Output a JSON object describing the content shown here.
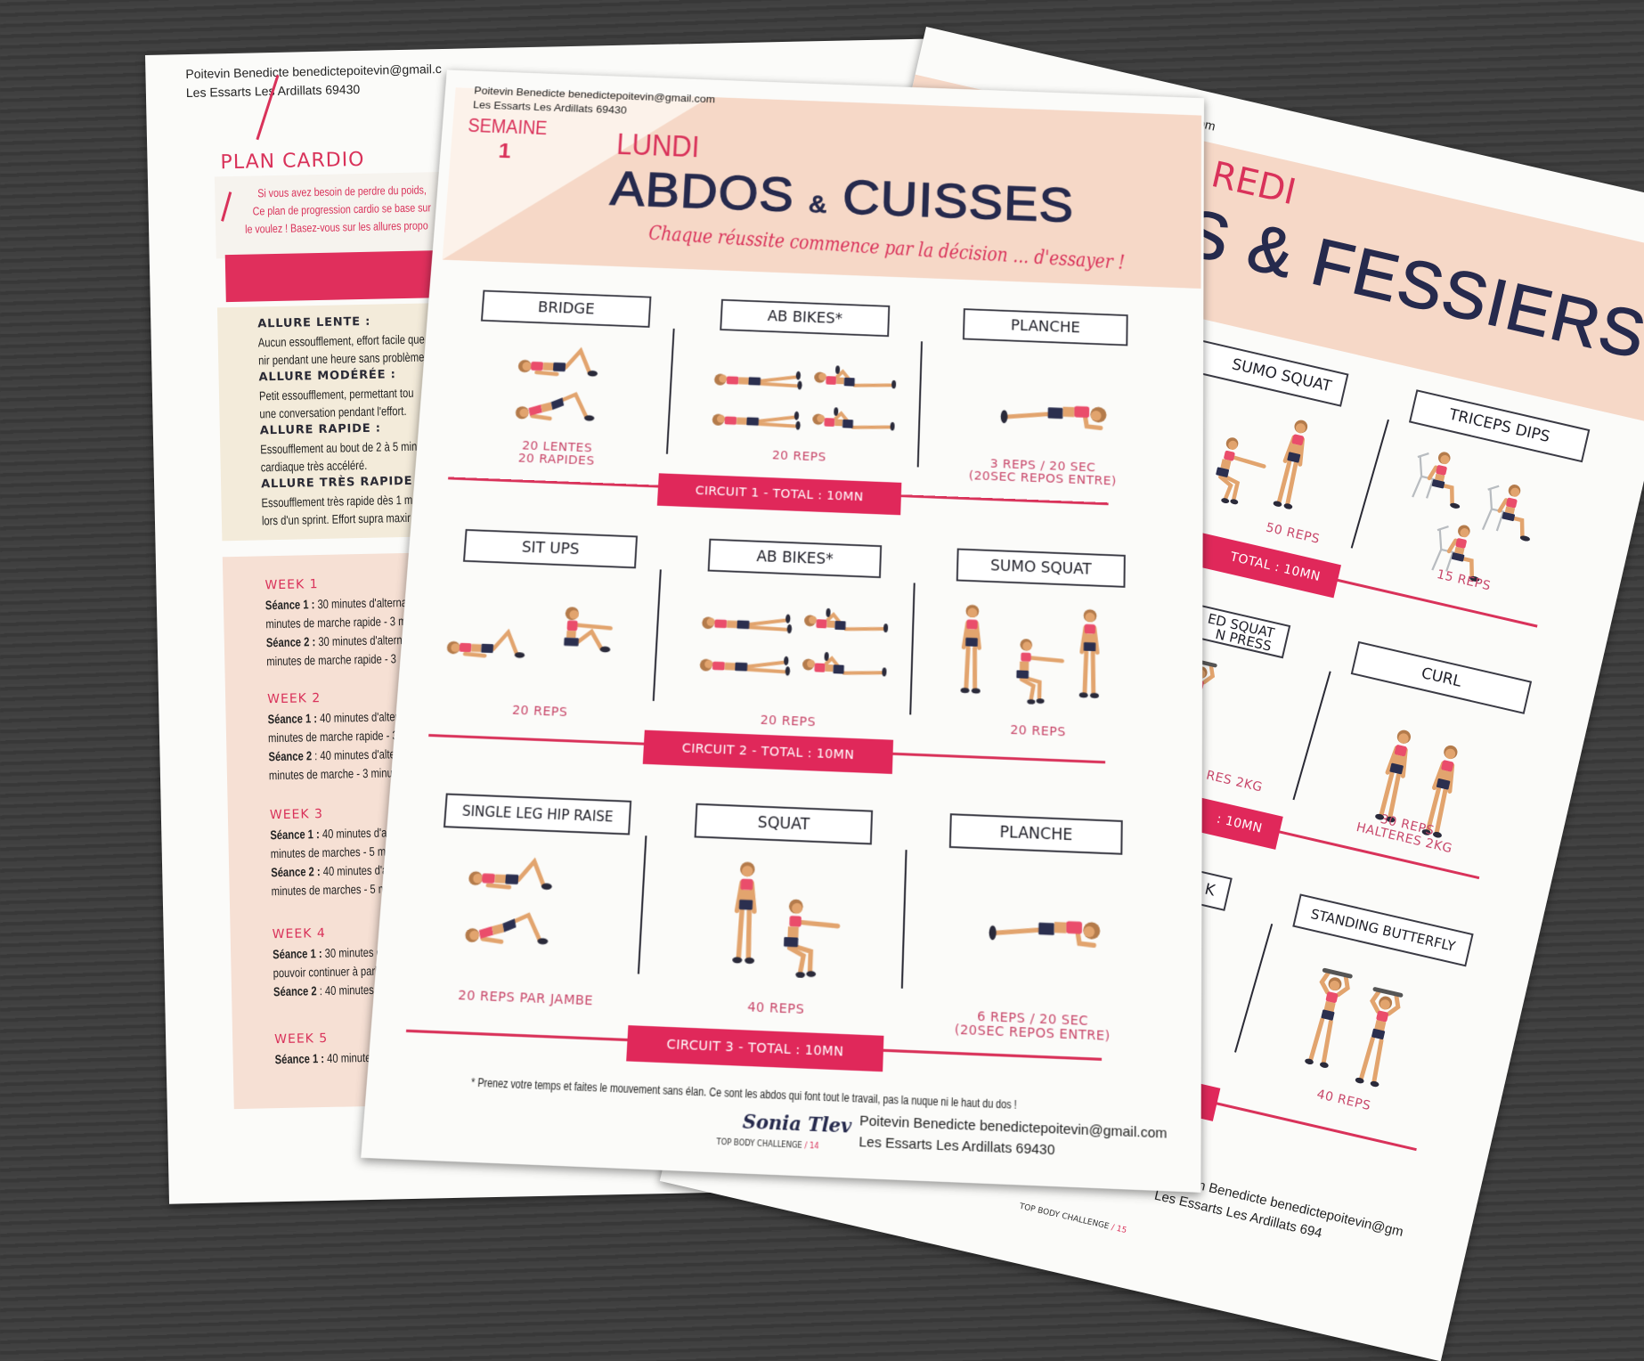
{
  "colors": {
    "accent_red": "#d9325a",
    "circuit_bar": "#e0285a",
    "title_navy": "#262a4d",
    "header_band": "#f6d8c7",
    "reps_text": "#c8476a",
    "table_background": "#3c3c3c"
  },
  "left_page": {
    "contact": {
      "line1": "Poitevin Benedicte benedictepoitevin@gmail.c",
      "line2": "Les Essarts Les Ardillats 69430"
    },
    "title": "PLAN CARDIO",
    "intro": [
      "Si vous avez besoin de perdre du poids, ",
      "Ce plan de progression cardio se base sur",
      "le voulez ! Basez-vous sur les allures propo"
    ],
    "allures": [
      {
        "label": "ALLURE LENTE :",
        "lines": [
          "Aucun essoufflement, effort facile que",
          "nir pendant une heure sans problème."
        ]
      },
      {
        "label": "ALLURE MODÉRÉE :",
        "lines": [
          "Petit essoufflement, permettant tou",
          "une conversation pendant l'effort."
        ]
      },
      {
        "label": "ALLURE RAPIDE :",
        "lines": [
          "Essoufflement au bout de 2 à 5 min",
          "cardiaque très accéléré."
        ]
      },
      {
        "label": "ALLURE TRÈS RAPIDE :",
        "lines": [
          "Essoufflement très rapide dès 1 m",
          "lors d'un sprint. Effort supra maxir"
        ]
      }
    ],
    "weeks": [
      {
        "label": "WEEK 1",
        "lines": [
          {
            "bold": "Séance 1 :",
            "text": " 30 minutes d'alterna"
          },
          {
            "bold": "",
            "text": "minutes de marche rapide - 3 m"
          },
          {
            "bold": "Séance 2 :",
            "text": " 30 minutes d'altern"
          },
          {
            "bold": "",
            "text": "minutes de marche rapide  - 3"
          }
        ]
      },
      {
        "label": "WEEK 2",
        "lines": [
          {
            "bold": "Séance 1 :",
            "text": " 40 minutes d'alter"
          },
          {
            "bold": "",
            "text": "minutes de marche rapide - 3"
          },
          {
            "bold": "Séance 2",
            "text": " : 40 minutes d'alte"
          },
          {
            "bold": "",
            "text": "minutes de marche - 3 minu"
          }
        ]
      },
      {
        "label": "WEEK 3",
        "lines": [
          {
            "bold": "Séance 1 :",
            "text": " 40 minutes d'al"
          },
          {
            "bold": "",
            "text": "minutes de marches - 5 mi"
          },
          {
            "bold": "Séance 2 :",
            "text": " 40 minutes d'a"
          },
          {
            "bold": "",
            "text": "minutes de marches - 5 m"
          }
        ]
      },
      {
        "label": "WEEK 4",
        "lines": [
          {
            "bold": "Séance 1 :",
            "text": " 30 minutes de"
          },
          {
            "bold": "",
            "text": "pouvoir continuer à parl"
          },
          {
            "bold": "Séance 2",
            "text": " : 40 minutes d"
          }
        ]
      },
      {
        "label": "WEEK 5",
        "lines": [
          {
            "bold": "Séance 1 :",
            "text": " 40 minutes"
          }
        ]
      }
    ]
  },
  "center_page": {
    "contact": {
      "line1": "Poitevin Benedicte benedictepoitevin@gmail.com",
      "line2": "Les Essarts Les Ardillats 69430"
    },
    "week_label": "SEMAINE",
    "week_number": "1",
    "day": "LUNDI",
    "title": "ABDOS",
    "title_amp": "&",
    "title_2": "CUISSES",
    "tagline": "Chaque réussite commence par la décision ... d'essayer !",
    "circuits": [
      {
        "label": "CIRCUIT 1 - TOTAL : 10MN",
        "exercises": [
          {
            "name": "BRIDGE",
            "reps": [
              "20 LENTES",
              "20 RAPIDES"
            ],
            "icon": "bridge-exercise-illustration"
          },
          {
            "name": "AB BIKES*",
            "reps": [
              "20 REPS"
            ],
            "icon": "ab-bikes-exercise-illustration"
          },
          {
            "name": "PLANCHE",
            "reps": [
              "3 REPS / 20 SEC",
              "(20SEC REPOS ENTRE)"
            ],
            "icon": "plank-exercise-illustration"
          }
        ]
      },
      {
        "label": "CIRCUIT 2 - TOTAL : 10MN",
        "exercises": [
          {
            "name": "SIT UPS",
            "reps": [
              "20 REPS"
            ],
            "icon": "sit-ups-exercise-illustration"
          },
          {
            "name": "AB BIKES*",
            "reps": [
              "20 REPS"
            ],
            "icon": "ab-bikes-exercise-illustration"
          },
          {
            "name": "SUMO SQUAT",
            "reps": [
              "20 REPS"
            ],
            "icon": "sumo-squat-exercise-illustration"
          }
        ]
      },
      {
        "label": "CIRCUIT 3 - TOTAL : 10MN",
        "exercises": [
          {
            "name": "SINGLE LEG HIP RAISE",
            "reps": [
              "20 REPS PAR JAMBE"
            ],
            "icon": "hip-raise-exercise-illustration"
          },
          {
            "name": "SQUAT",
            "reps": [
              "40 REPS"
            ],
            "icon": "squat-exercise-illustration"
          },
          {
            "name": "PLANCHE",
            "reps": [
              "6 REPS / 20 SEC",
              "(20SEC REPOS ENTRE)"
            ],
            "icon": "plank-exercise-illustration"
          }
        ]
      }
    ],
    "footnote": "* Prenez votre temps et faites le mouvement sans élan. Ce sont les abdos qui font tout le travail, pas la nuque ni le haut du dos !",
    "logo": {
      "brand": "Sonia Tlev",
      "caption": "TOP BODY CHALLENGE",
      "page_number": "14"
    },
    "footer": {
      "line1": "Poitevin Benedicte benedictepoitevin@gmail.com",
      "line2": "Les Essarts Les Ardillats 69430"
    }
  },
  "right_page": {
    "contact_fragment": "om",
    "day_fragment": "REDI",
    "title_fragment": "S & FESSIERS",
    "rows": [
      {
        "circuit_fragment": "TOTAL : 10MN",
        "exercises": [
          {
            "name": "SUMO SQUAT",
            "reps": [
              "50 REPS"
            ],
            "icon": "sumo-squat-exercise-illustration"
          },
          {
            "name": "TRICEPS DIPS",
            "reps": [
              "15 REPS"
            ],
            "icon": "triceps-dips-exercise-illustration"
          }
        ]
      },
      {
        "circuit_fragment": ": 10MN",
        "exercises": [
          {
            "name": "ED SQUAT",
            "name_2": "N PRESS",
            "reps": [
              "RES 2KG"
            ],
            "icon": "squat-press-exercise-illustration"
          },
          {
            "name": "CURL",
            "reps": [
              "30 REPS",
              "HALTERES 2KG"
            ],
            "icon": "curl-exercise-illustration"
          }
        ]
      },
      {
        "circuit_fragment": "",
        "exercises": [
          {
            "name": "K",
            "reps": [],
            "icon": "exercise-illustration"
          },
          {
            "name": "STANDING BUTTERFLY",
            "reps": [
              "40 REPS"
            ],
            "icon": "standing-butterfly-exercise-illustration"
          }
        ]
      }
    ],
    "logo_caption": "TOP BODY CHALLENGE",
    "page_number": "15",
    "footer": {
      "line1": "Poitevin Benedicte benedictepoitevin@gm",
      "line2": "Les Essarts Les Ardillats 694"
    }
  }
}
